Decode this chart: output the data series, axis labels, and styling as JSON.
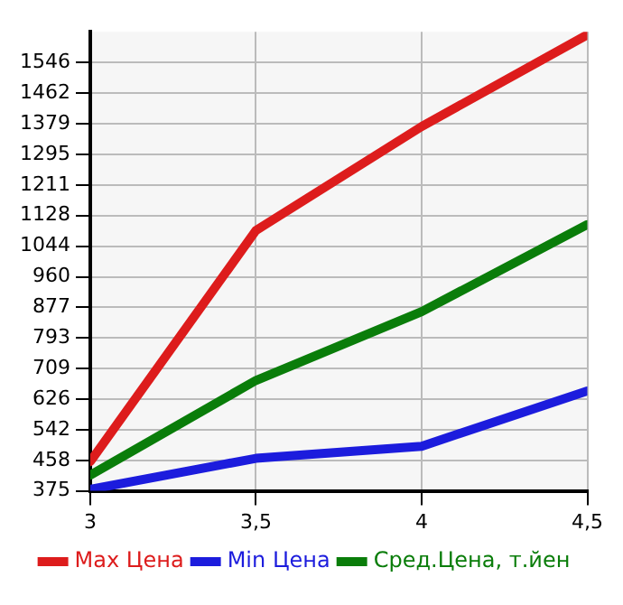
{
  "chart_data": {
    "type": "line",
    "x": [
      3,
      3.5,
      4,
      4.5
    ],
    "xlim": [
      3,
      4.5
    ],
    "xticks": [
      3,
      {
        "value": 3.5,
        "label": "3,5"
      },
      4,
      {
        "value": 4.5,
        "label": "4,5"
      }
    ],
    "ylim": [
      375,
      1630
    ],
    "yticks": [
      375,
      458,
      542,
      626,
      709,
      793,
      877,
      960,
      1044,
      1128,
      1211,
      1295,
      1379,
      1462,
      1546
    ],
    "grid": true,
    "legend": "bottom",
    "marker": "none",
    "line_style": "solid",
    "series": [
      {
        "name": "Max Цена",
        "color": "#dd1c1c",
        "values": [
          455,
          1087,
          1371,
          1622
        ]
      },
      {
        "name": "Min Цена",
        "color": "#1c1cdd",
        "values": [
          379,
          464,
          497,
          648
        ]
      },
      {
        "name": "Сред.Цена, т.йен",
        "color": "#0a7d0a",
        "values": [
          418,
          677,
          865,
          1103
        ]
      }
    ]
  }
}
